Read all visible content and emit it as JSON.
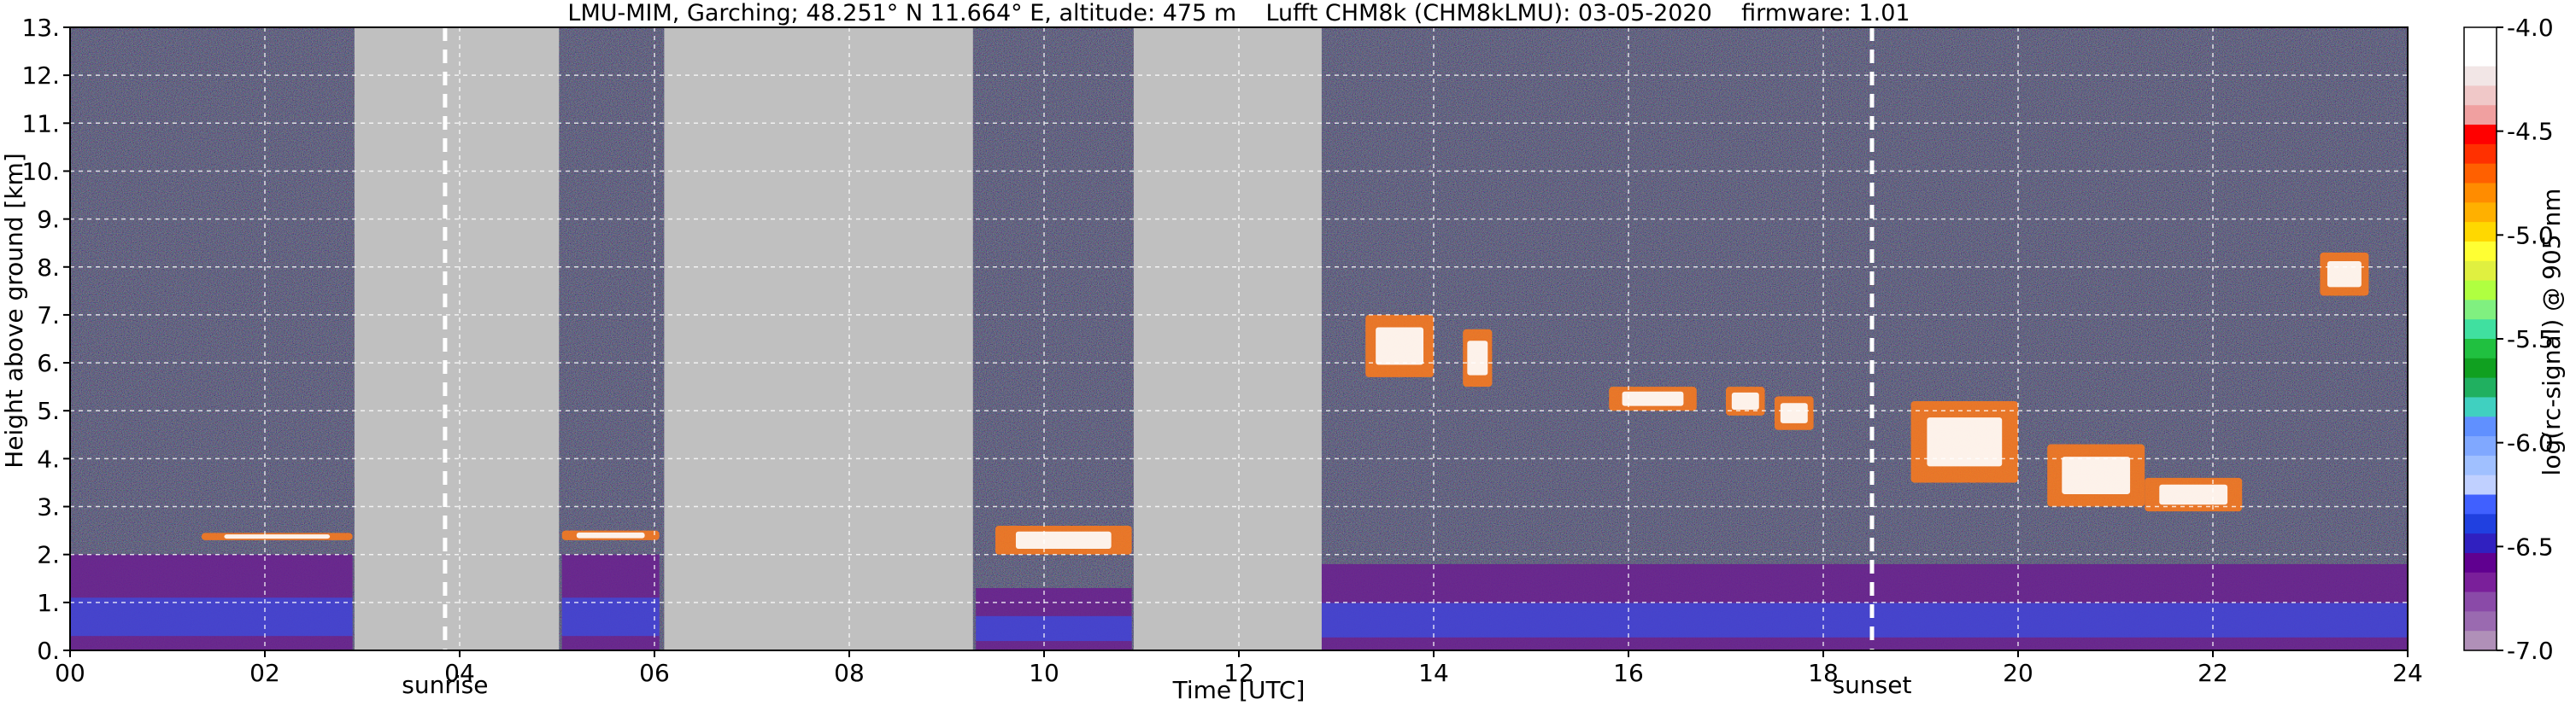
{
  "chart_data": {
    "type": "heatmap",
    "title": "LMU-MIM, Garching; 48.251° N 11.664° E, altitude: 475 m    Lufft CHM8k (CHM8kLMU): 03-05-2020    firmware: 1.01",
    "xlabel": "Time [UTC]",
    "ylabel": "Height above ground [km]",
    "xlim": [
      0,
      24
    ],
    "ylim": [
      0,
      13
    ],
    "x_ticks": [
      "00",
      "02",
      "04",
      "06",
      "08",
      "10",
      "12",
      "14",
      "16",
      "18",
      "20",
      "22",
      "24"
    ],
    "x_tick_values": [
      0,
      2,
      4,
      6,
      8,
      10,
      12,
      14,
      16,
      18,
      20,
      22,
      24
    ],
    "y_ticks": [
      "0.",
      "1.",
      "2.",
      "3.",
      "4.",
      "5.",
      "6.",
      "7.",
      "8.",
      "9.",
      "10.",
      "11.",
      "12.",
      "13."
    ],
    "y_tick_values": [
      0,
      1,
      2,
      3,
      4,
      5,
      6,
      7,
      8,
      9,
      10,
      11,
      12,
      13
    ],
    "grid": true,
    "no_data_periods": [
      [
        2.92,
        5.02
      ],
      [
        6.1,
        9.27
      ],
      [
        10.92,
        12.85
      ]
    ],
    "sun_events": [
      {
        "label": "sunrise",
        "time": 3.85
      },
      {
        "label": "sunset",
        "time": 18.5
      }
    ],
    "colorbar": {
      "label": "log(rc-signal) @ 905 nm",
      "range": [
        -7.0,
        -4.0
      ],
      "tick_labels": [
        "-4.0",
        "-4.5",
        "-5.0",
        "-5.5",
        "-6.0",
        "-6.5",
        "-7.0"
      ],
      "tick_values": [
        -4.0,
        -4.5,
        -5.0,
        -5.5,
        -6.0,
        -6.5,
        -7.0
      ]
    },
    "layers": [
      {
        "kind": "cloud",
        "t0": 1.35,
        "t1": 2.9,
        "h0": 2.3,
        "h1": 2.45
      },
      {
        "kind": "cloud",
        "t0": 5.05,
        "t1": 6.05,
        "h0": 2.3,
        "h1": 2.5
      },
      {
        "kind": "cloud",
        "t0": 9.5,
        "t1": 10.9,
        "h0": 2.0,
        "h1": 2.6
      },
      {
        "kind": "cloud",
        "t0": 13.3,
        "t1": 14.0,
        "h0": 5.7,
        "h1": 7.0
      },
      {
        "kind": "cloud",
        "t0": 14.3,
        "t1": 14.6,
        "h0": 5.5,
        "h1": 6.7
      },
      {
        "kind": "cloud",
        "t0": 15.8,
        "t1": 16.7,
        "h0": 5.0,
        "h1": 5.5
      },
      {
        "kind": "cloud",
        "t0": 17.0,
        "t1": 17.4,
        "h0": 4.9,
        "h1": 5.5
      },
      {
        "kind": "cloud",
        "t0": 17.5,
        "t1": 17.9,
        "h0": 4.6,
        "h1": 5.3
      },
      {
        "kind": "cloud",
        "t0": 18.9,
        "t1": 20.0,
        "h0": 3.5,
        "h1": 5.2
      },
      {
        "kind": "cloud",
        "t0": 20.3,
        "t1": 21.3,
        "h0": 3.0,
        "h1": 4.3
      },
      {
        "kind": "cloud",
        "t0": 21.3,
        "t1": 22.3,
        "h0": 2.9,
        "h1": 3.6
      },
      {
        "kind": "cloud",
        "t0": 23.1,
        "t1": 23.6,
        "h0": 7.4,
        "h1": 8.3
      },
      {
        "kind": "aerosol",
        "t0": 0.0,
        "t1": 2.9,
        "h0": 0.0,
        "h1": 2.0
      },
      {
        "kind": "aerosol",
        "t0": 5.05,
        "t1": 6.05,
        "h0": 0.0,
        "h1": 2.0
      },
      {
        "kind": "aerosol",
        "t0": 9.3,
        "t1": 10.9,
        "h0": 0.0,
        "h1": 1.3
      },
      {
        "kind": "aerosol",
        "t0": 12.85,
        "t1": 24.0,
        "h0": 0.0,
        "h1": 1.8
      }
    ]
  }
}
